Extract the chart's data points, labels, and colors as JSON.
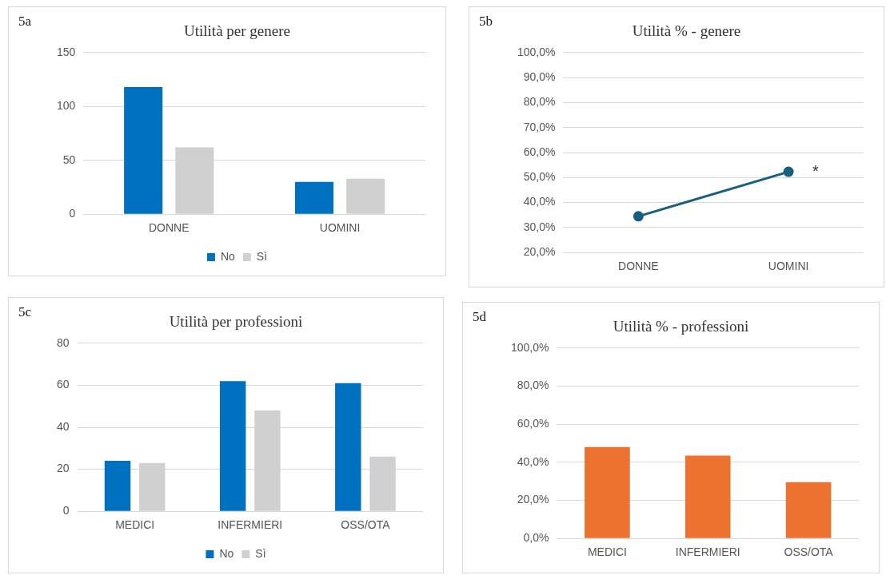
{
  "chart_data": [
    {
      "type": "bar",
      "title": "Utilità per genere",
      "annotations": [
        "5a"
      ],
      "categories": [
        "DONNE",
        "UOMINI"
      ],
      "series": [
        {
          "name": "No",
          "color": "#0070c0",
          "values": [
            118,
            30
          ]
        },
        {
          "name": "Sì",
          "color": "#d0d0d0",
          "values": [
            62,
            33
          ]
        }
      ],
      "ylim": [
        0,
        150
      ],
      "yticks": [
        0,
        50,
        100,
        150
      ],
      "grid": "y",
      "legend": "bottom"
    },
    {
      "type": "line",
      "title": "Utilità % - genere",
      "annotations": [
        "5b",
        {
          "text": "*",
          "x": "UOMINI",
          "y": 52.3
        }
      ],
      "categories": [
        "DONNE",
        "UOMINI"
      ],
      "series": [
        {
          "color": "#17607d",
          "values": [
            34.5,
            52.3
          ]
        }
      ],
      "ylim": [
        20,
        100
      ],
      "yticks": [
        {
          "value": 20,
          "label": "20,0%"
        },
        {
          "value": 30,
          "label": "30,0%"
        },
        {
          "value": 40,
          "label": "40,0%"
        },
        {
          "value": 50,
          "label": "50,0%"
        },
        {
          "value": 60,
          "label": "60,0%"
        },
        {
          "value": 70,
          "label": "70,0%"
        },
        {
          "value": 80,
          "label": "80,0%"
        },
        {
          "value": 90,
          "label": "90,0%"
        },
        {
          "value": 100,
          "label": "100,0%"
        }
      ],
      "grid": "y",
      "marker": "circle",
      "line_style": "solid"
    },
    {
      "type": "bar",
      "title": "Utilità per professioni",
      "annotations": [
        "5c"
      ],
      "categories": [
        "MEDICI",
        "INFERMIERI",
        "OSS/OTA"
      ],
      "series": [
        {
          "name": "No",
          "color": "#0070c0",
          "values": [
            24,
            62,
            61
          ]
        },
        {
          "name": "Sì",
          "color": "#d0d0d0",
          "values": [
            23,
            48,
            26
          ]
        }
      ],
      "ylim": [
        0,
        80
      ],
      "yticks": [
        0,
        20,
        40,
        60,
        80
      ],
      "grid": "y",
      "legend": "bottom"
    },
    {
      "type": "bar",
      "title": "Utilità % - professioni",
      "annotations": [
        "5d"
      ],
      "categories": [
        "MEDICI",
        "INFERMIERI",
        "OSS/OTA"
      ],
      "series": [
        {
          "color": "#ed7130",
          "values": [
            48,
            43.5,
            29.5
          ]
        }
      ],
      "ylim": [
        0,
        100
      ],
      "yticks": [
        {
          "value": 0,
          "label": "0,0%"
        },
        {
          "value": 20,
          "label": "20,0%"
        },
        {
          "value": 40,
          "label": "40,0%"
        },
        {
          "value": 60,
          "label": "60,0%"
        },
        {
          "value": 80,
          "label": "80,0%"
        },
        {
          "value": 100,
          "label": "100,0%"
        }
      ],
      "grid": "y"
    }
  ]
}
